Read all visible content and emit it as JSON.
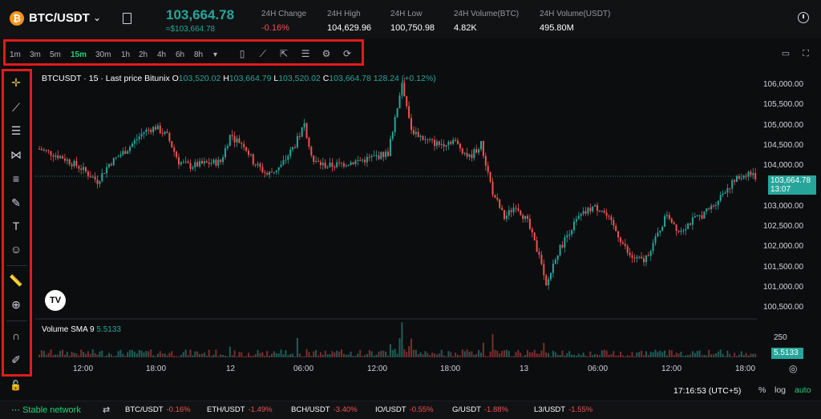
{
  "header": {
    "pair": "BTC/USDT",
    "price": "103,664.78",
    "price_sub": "≈$103,664.78",
    "stats": [
      {
        "label": "24H Change",
        "value": "-0.16%",
        "neg": true
      },
      {
        "label": "24H High",
        "value": "104,629.96",
        "neg": false
      },
      {
        "label": "24H Low",
        "value": "100,750.98",
        "neg": false
      },
      {
        "label": "24H Volume(BTC)",
        "value": "4.82K",
        "neg": false
      },
      {
        "label": "24H Volume(USDT)",
        "value": "495.80M",
        "neg": false
      }
    ]
  },
  "toolbar": {
    "timeframes": [
      "1m",
      "3m",
      "5m",
      "15m",
      "30m",
      "1h",
      "2h",
      "4h",
      "6h",
      "8h"
    ],
    "active": "15m",
    "more": "▾"
  },
  "legend": {
    "symbol": "BTCUSDT · 15 · Last price Bitunix",
    "o_label": "O",
    "o": "103,520.02",
    "h_label": "H",
    "h": "103,664.79",
    "l_label": "L",
    "l": "103,520.02",
    "c_label": "C",
    "c": "103,664.78",
    "change": "128.24 (+0.12%)"
  },
  "volume": {
    "label": "Volume SMA 9",
    "value": "5.5133",
    "axis_label": "250"
  },
  "last_tag": {
    "price": "103,664.78",
    "countdown": "13:07"
  },
  "chart_data": {
    "type": "candlestick",
    "y_ticks": [
      "106,000.00",
      "105,500.00",
      "105,000.00",
      "104,500.00",
      "104,000.00",
      "103,000.00",
      "102,500.00",
      "102,000.00",
      "101,500.00",
      "101,000.00",
      "100,500.00"
    ],
    "x_ticks": [
      "12:00",
      "18:00",
      "12",
      "06:00",
      "12:00",
      "18:00",
      "13",
      "06:00",
      "12:00",
      "18:00"
    ],
    "ylim": [
      100400,
      106150
    ],
    "last_price": 103664.78,
    "trend": [
      [
        0,
        104300
      ],
      [
        10,
        104100
      ],
      [
        18,
        103850
      ],
      [
        25,
        103550
      ],
      [
        30,
        103950
      ],
      [
        38,
        104300
      ],
      [
        45,
        104700
      ],
      [
        50,
        104800
      ],
      [
        55,
        104600
      ],
      [
        60,
        104000
      ],
      [
        65,
        103900
      ],
      [
        70,
        103950
      ],
      [
        78,
        104000
      ],
      [
        82,
        104600
      ],
      [
        88,
        104400
      ],
      [
        92,
        104000
      ],
      [
        98,
        103700
      ],
      [
        104,
        103900
      ],
      [
        110,
        104400
      ],
      [
        114,
        104850
      ],
      [
        118,
        104000
      ],
      [
        124,
        103900
      ],
      [
        130,
        103950
      ],
      [
        140,
        104050
      ],
      [
        150,
        104200
      ],
      [
        156,
        105850
      ],
      [
        160,
        104750
      ],
      [
        166,
        104500
      ],
      [
        172,
        104400
      ],
      [
        178,
        104500
      ],
      [
        185,
        104100
      ],
      [
        190,
        104400
      ],
      [
        195,
        103300
      ],
      [
        200,
        102700
      ],
      [
        205,
        103000
      ],
      [
        210,
        102600
      ],
      [
        215,
        101800
      ],
      [
        218,
        101100
      ],
      [
        222,
        101800
      ],
      [
        228,
        102400
      ],
      [
        232,
        102700
      ],
      [
        238,
        102950
      ],
      [
        242,
        102900
      ],
      [
        248,
        102400
      ],
      [
        254,
        101800
      ],
      [
        260,
        101700
      ],
      [
        265,
        102200
      ],
      [
        270,
        102800
      ],
      [
        275,
        102400
      ],
      [
        280,
        102600
      ],
      [
        286,
        102800
      ],
      [
        290,
        103000
      ],
      [
        295,
        103350
      ],
      [
        300,
        103600
      ],
      [
        305,
        103750
      ],
      [
        308,
        103650
      ]
    ]
  },
  "bottom": {
    "time": "17:16:53 (UTC+5)",
    "pct": "%",
    "log": "log",
    "auto": "auto",
    "network": "Stable network",
    "tickers": [
      {
        "pair": "BTC/USDT",
        "chg": "-0.16%"
      },
      {
        "pair": "ETH/USDT",
        "chg": "-1.49%"
      },
      {
        "pair": "BCH/USDT",
        "chg": "-3.40%"
      },
      {
        "pair": "IO/USDT",
        "chg": "-0.55%"
      },
      {
        "pair": "G/USDT",
        "chg": "-1.88%"
      },
      {
        "pair": "L3/USDT",
        "chg": "-1.55%"
      }
    ]
  }
}
